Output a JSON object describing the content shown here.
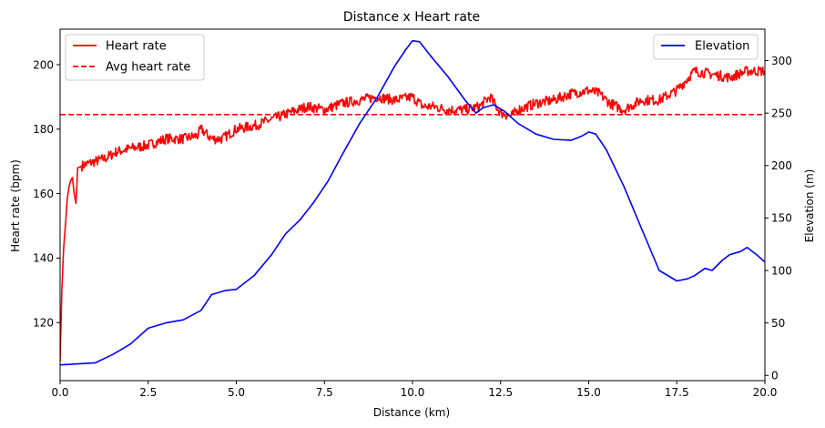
{
  "chart_data": {
    "type": "line",
    "title": "Distance x Heart rate",
    "xlabel": "Distance (km)",
    "ylabel": "Heart rate (bpm)",
    "y2label": "Elevation (m)",
    "xlim": [
      0,
      20
    ],
    "ylim": [
      102,
      211
    ],
    "y2lim": [
      -5,
      330
    ],
    "xticks": [
      "0.0",
      "2.5",
      "5.0",
      "7.5",
      "10.0",
      "12.5",
      "15.0",
      "17.5",
      "20.0"
    ],
    "xtick_values": [
      0,
      2.5,
      5,
      7.5,
      10,
      12.5,
      15,
      17.5,
      20
    ],
    "yticks": [
      "120",
      "140",
      "160",
      "180",
      "200"
    ],
    "ytick_values": [
      120,
      140,
      160,
      180,
      200
    ],
    "y2ticks": [
      "0",
      "50",
      "100",
      "150",
      "200",
      "250",
      "300"
    ],
    "y2tick_values": [
      0,
      50,
      100,
      150,
      200,
      250,
      300
    ],
    "grid": false,
    "legend_left": {
      "placement": "upper-left",
      "entries": [
        "Heart rate",
        "Avg heart rate"
      ]
    },
    "legend_right": {
      "placement": "upper-right",
      "entries": [
        "Elevation"
      ]
    },
    "series": [
      {
        "name": "Heart rate",
        "axis": "left",
        "color": "#ff0000",
        "style": "solid",
        "x": [
          0,
          0.05,
          0.1,
          0.15,
          0.2,
          0.25,
          0.3,
          0.35,
          0.4,
          0.45,
          0.5,
          0.7,
          1.0,
          1.3,
          1.6,
          2.0,
          2.5,
          3.0,
          3.5,
          3.9,
          4.0,
          4.3,
          4.6,
          5.0,
          5.5,
          6.0,
          6.5,
          7.0,
          7.5,
          8.0,
          8.5,
          9.0,
          9.5,
          10.0,
          10.3,
          10.6,
          11.0,
          11.5,
          11.9,
          12.2,
          12.5,
          12.8,
          13.0,
          13.5,
          14.0,
          14.5,
          15.0,
          15.3,
          15.6,
          16.0,
          16.5,
          17.0,
          17.5,
          18.0,
          18.5,
          19.0,
          19.5,
          20.0
        ],
        "values": [
          108,
          130,
          143,
          150,
          158,
          162,
          164,
          165,
          160,
          157,
          168,
          169,
          170,
          171,
          173,
          174,
          175,
          177,
          177,
          178,
          180,
          177,
          177,
          180,
          181,
          183,
          185,
          187,
          186,
          188,
          189,
          190,
          189,
          190,
          187,
          187,
          186,
          186,
          187,
          190,
          185,
          184,
          186,
          188,
          189,
          191,
          192,
          191,
          188,
          186,
          189,
          189,
          192,
          198,
          197,
          196,
          198,
          198
        ]
      },
      {
        "name": "Avg heart rate",
        "axis": "left",
        "color": "#ff0000",
        "style": "dashed",
        "constant": 184.5
      },
      {
        "name": "Elevation",
        "axis": "right",
        "color": "#0000ff",
        "style": "solid",
        "x": [
          0,
          0.5,
          1.0,
          1.5,
          2.0,
          2.5,
          3.0,
          3.5,
          4.0,
          4.3,
          4.7,
          5.0,
          5.5,
          6.0,
          6.4,
          6.8,
          7.2,
          7.6,
          8.0,
          8.5,
          9.0,
          9.5,
          9.8,
          10.0,
          10.2,
          10.5,
          11.0,
          11.5,
          11.8,
          12.0,
          12.3,
          12.6,
          13.0,
          13.5,
          14.0,
          14.5,
          14.8,
          15.0,
          15.2,
          15.5,
          16.0,
          16.5,
          17.0,
          17.5,
          17.8,
          18.0,
          18.3,
          18.5,
          18.8,
          19.0,
          19.3,
          19.5,
          19.8,
          20.0
        ],
        "values": [
          10,
          11,
          12,
          20,
          30,
          45,
          50,
          53,
          62,
          77,
          81,
          82,
          95,
          115,
          135,
          148,
          165,
          185,
          210,
          240,
          265,
          295,
          310,
          319,
          318,
          305,
          285,
          262,
          250,
          255,
          258,
          252,
          240,
          230,
          225,
          224,
          228,
          232,
          230,
          215,
          180,
          140,
          100,
          90,
          92,
          95,
          102,
          100,
          110,
          115,
          118,
          122,
          114,
          108
        ]
      }
    ]
  }
}
